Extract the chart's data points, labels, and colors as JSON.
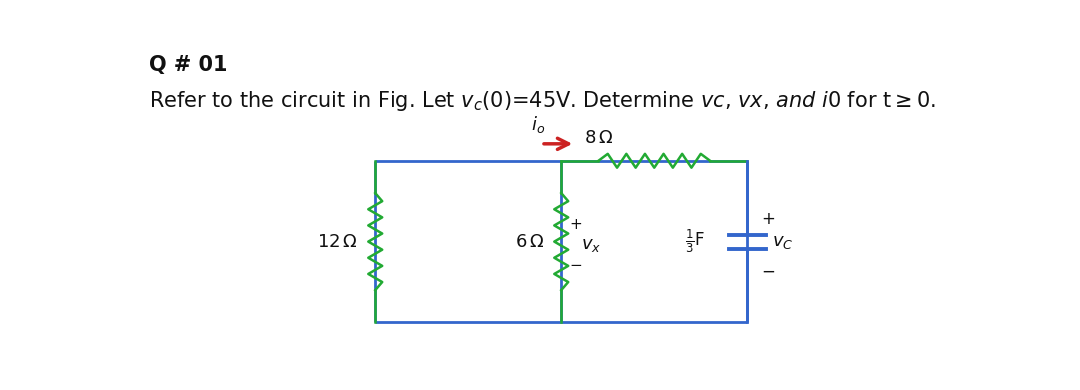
{
  "bg_color": "#ffffff",
  "wire_color": "#3366cc",
  "resistor_color": "#22aa33",
  "arrow_color": "#cc2222",
  "text_color": "#111111",
  "title1": "Q # 01",
  "xl": 3.1,
  "xm": 5.5,
  "xr": 7.9,
  "yb": 0.32,
  "yt": 2.42,
  "wire_lw": 2.0,
  "res_lw": 1.8,
  "res_amp": 0.09,
  "res_n": 6
}
